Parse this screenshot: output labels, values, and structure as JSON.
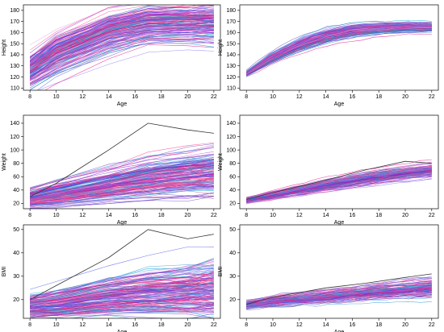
{
  "palette": [
    "#e4007f",
    "#7b2ad8",
    "#3d52e6",
    "#ff6eb4",
    "#00a8c8",
    "#b04cd0",
    "#5a3fc0",
    "#c83c78",
    "#2b8fd6",
    "#d89ae6",
    "#8a6df0",
    "#ff3d8b"
  ],
  "highlight_color": "#333333",
  "chart_data": [
    {
      "id": "height-observed",
      "type": "line",
      "panel": "top-left",
      "xlabel": "Age",
      "ylabel": "Height",
      "xlim": [
        7.5,
        22.5
      ],
      "ylim": [
        108,
        185
      ],
      "xticks": [
        8,
        10,
        12,
        14,
        16,
        18,
        20,
        22
      ],
      "yticks": [
        110,
        120,
        130,
        140,
        150,
        160,
        170,
        180
      ],
      "x": [
        8,
        10,
        14,
        17,
        20,
        22
      ],
      "series_count": 170,
      "style": "observed",
      "mean": [
        125,
        140,
        160,
        167,
        168,
        168
      ],
      "spread": [
        9,
        10,
        10,
        9,
        9,
        9
      ],
      "grid": false
    },
    {
      "id": "height-fitted",
      "type": "line",
      "panel": "top-right",
      "xlabel": "Age",
      "ylabel": "Height",
      "xlim": [
        7.5,
        22.5
      ],
      "ylim": [
        108,
        185
      ],
      "xticks": [
        8,
        10,
        12,
        14,
        16,
        18,
        20,
        22
      ],
      "yticks": [
        110,
        120,
        130,
        140,
        150,
        160,
        170,
        180
      ],
      "x": [
        8,
        10,
        12,
        14,
        16,
        18,
        20,
        22
      ],
      "series_count": 120,
      "style": "fitted",
      "mean": [
        123,
        138,
        149,
        157,
        162,
        164,
        165,
        165
      ],
      "spread": [
        1,
        2.2,
        2.8,
        3,
        3,
        2.5,
        2.2,
        2
      ],
      "grid": false
    },
    {
      "id": "weight-observed",
      "type": "line",
      "panel": "middle-left",
      "xlabel": "Age",
      "ylabel": "Weight",
      "xlim": [
        7.5,
        22.5
      ],
      "ylim": [
        12,
        152
      ],
      "xticks": [
        8,
        10,
        12,
        14,
        16,
        18,
        20,
        22
      ],
      "yticks": [
        20,
        40,
        60,
        80,
        100,
        120,
        140
      ],
      "x": [
        8,
        10,
        14,
        17,
        20,
        22
      ],
      "series_count": 170,
      "style": "observed",
      "mean": [
        27,
        34,
        48,
        58,
        64,
        68
      ],
      "spread": [
        6,
        8,
        11,
        13,
        14,
        15
      ],
      "highlight": [
        30,
        50,
        100,
        140,
        130,
        125
      ],
      "grid": false
    },
    {
      "id": "weight-fitted",
      "type": "line",
      "panel": "middle-right",
      "xlabel": "Age",
      "ylabel": "Weight",
      "xlim": [
        7.5,
        22.5
      ],
      "ylim": [
        12,
        152
      ],
      "xticks": [
        8,
        10,
        12,
        14,
        16,
        18,
        20,
        22
      ],
      "yticks": [
        20,
        40,
        60,
        80,
        100,
        120,
        140
      ],
      "x": [
        8,
        10,
        14,
        17,
        20,
        22
      ],
      "series_count": 120,
      "style": "fitted",
      "mean": [
        25,
        33,
        48,
        58,
        66,
        70
      ],
      "spread": [
        2,
        3,
        4.5,
        5,
        5,
        5
      ],
      "highlight": [
        26,
        36,
        55,
        70,
        83,
        80
      ],
      "grid": false
    },
    {
      "id": "bmi-observed",
      "type": "line",
      "panel": "bottom-left",
      "xlabel": "Age",
      "ylabel": "BMI",
      "xlim": [
        7.5,
        22.5
      ],
      "ylim": [
        12,
        52
      ],
      "xticks": [
        8,
        10,
        12,
        14,
        16,
        18,
        20,
        22
      ],
      "yticks": [
        20,
        30,
        40,
        50
      ],
      "x": [
        8,
        10,
        14,
        17,
        20,
        22
      ],
      "series_count": 170,
      "style": "observed",
      "mean": [
        17,
        18,
        21,
        22.5,
        23.5,
        24.5
      ],
      "spread": [
        2.5,
        3,
        4,
        5,
        5.5,
        6
      ],
      "highlight": [
        20,
        26,
        38,
        50,
        46,
        48
      ],
      "grid": false
    },
    {
      "id": "bmi-fitted",
      "type": "line",
      "panel": "bottom-right",
      "xlabel": "Age",
      "ylabel": "BMI",
      "xlim": [
        7.5,
        22.5
      ],
      "ylim": [
        12,
        52
      ],
      "xticks": [
        8,
        10,
        12,
        14,
        16,
        18,
        20,
        22
      ],
      "yticks": [
        20,
        30,
        40,
        50
      ],
      "x": [
        8,
        10,
        14,
        17,
        20,
        22
      ],
      "series_count": 120,
      "style": "fitted",
      "mean": [
        17.5,
        19,
        21,
        22.5,
        24,
        24.8
      ],
      "spread": [
        1,
        1.3,
        1.6,
        1.8,
        2,
        2.2
      ],
      "highlight": [
        18,
        21,
        25,
        27,
        29.5,
        31
      ],
      "grid": false
    }
  ]
}
